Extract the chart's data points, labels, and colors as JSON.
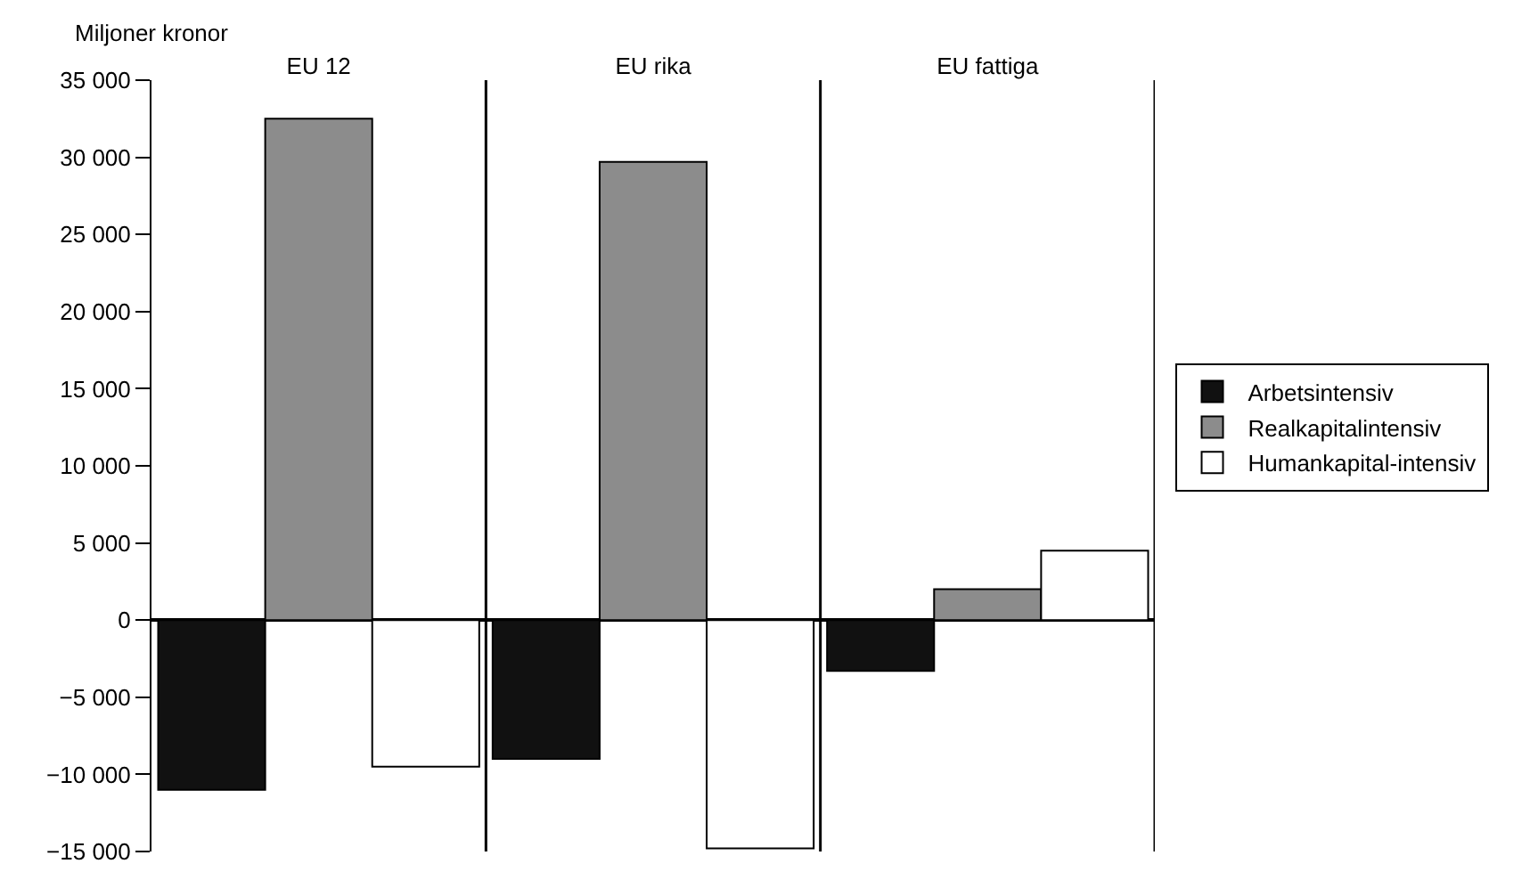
{
  "chart_data": {
    "type": "bar",
    "ylabel": "Miljoner kronor",
    "categories": [
      "EU 12",
      "EU rika",
      "EU fattiga"
    ],
    "series": [
      {
        "name": "Arbetsintensiv",
        "color": "#111111",
        "values": [
          -11000,
          -9000,
          -3300
        ]
      },
      {
        "name": "Realkapitalintensiv",
        "color": "#8c8c8c",
        "values": [
          32500,
          29700,
          2000
        ]
      },
      {
        "name": "Humankapital-intensiv",
        "color": "#ffffff",
        "values": [
          -9500,
          -14800,
          4500
        ]
      }
    ],
    "ylim": [
      -15000,
      35000
    ],
    "yticks": [
      {
        "value": -15000,
        "label": "−15 000"
      },
      {
        "value": -10000,
        "label": "−10 000"
      },
      {
        "value": -5000,
        "label": "−5 000"
      },
      0,
      {
        "value": 5000,
        "label": "5 000"
      },
      {
        "value": 10000,
        "label": "10 000"
      },
      {
        "value": 15000,
        "label": "15 000"
      },
      {
        "value": 20000,
        "label": "20 000"
      },
      {
        "value": 25000,
        "label": "25 000"
      },
      {
        "value": 30000,
        "label": "30 000"
      },
      {
        "value": 35000,
        "label": "35 000"
      }
    ],
    "grid": false,
    "legend": "right"
  }
}
